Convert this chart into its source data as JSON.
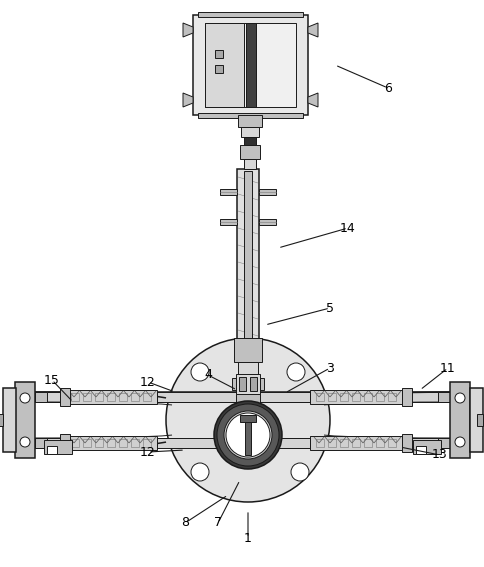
{
  "bg_color": "#ffffff",
  "lc": "#1a1a1a",
  "figsize": [
    4.85,
    5.67
  ],
  "dpi": 100,
  "labels": [
    [
      "1",
      248,
      538,
      248,
      510
    ],
    [
      "3",
      330,
      368,
      285,
      393
    ],
    [
      "4",
      208,
      375,
      237,
      390
    ],
    [
      "5",
      330,
      308,
      265,
      325
    ],
    [
      "6",
      388,
      88,
      335,
      65
    ],
    [
      "7",
      218,
      523,
      240,
      480
    ],
    [
      "8",
      185,
      523,
      228,
      495
    ],
    [
      "11",
      448,
      368,
      420,
      390
    ],
    [
      "12",
      148,
      382,
      175,
      392
    ],
    [
      "12",
      148,
      452,
      185,
      450
    ],
    [
      "13",
      440,
      455,
      400,
      447
    ],
    [
      "14",
      348,
      228,
      278,
      248
    ],
    [
      "15",
      52,
      380,
      73,
      402
    ]
  ]
}
